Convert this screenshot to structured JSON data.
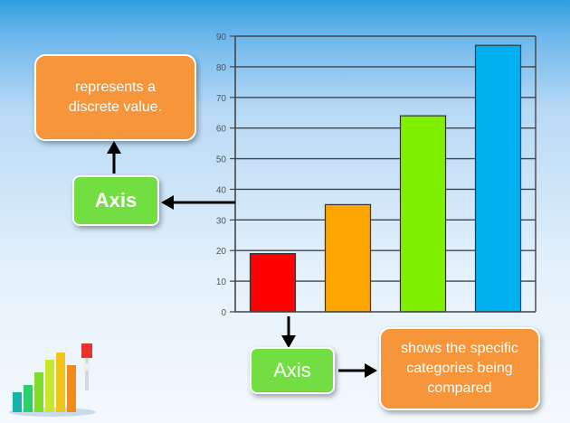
{
  "annotations": {
    "value_axis_note": "represents a discrete value.",
    "value_axis_label": "Axis",
    "category_axis_label": "Axis",
    "category_axis_note": "shows the specific categories being compared"
  },
  "colors": {
    "arrow": "#000000",
    "note_box": "#f7953b",
    "label_box": "#72de42"
  },
  "chart_data": {
    "type": "bar",
    "categories": [
      "",
      "",
      "",
      ""
    ],
    "values": [
      19,
      35,
      64,
      87
    ],
    "colors": [
      "#ff0000",
      "#ffa500",
      "#7ff000",
      "#00b0f0"
    ],
    "ylim": [
      0,
      90
    ],
    "yticks": [
      0,
      10,
      20,
      30,
      40,
      50,
      60,
      70,
      80,
      90
    ],
    "grid": true,
    "legend": "none"
  },
  "decor_icon": "bar-chart-clipart-icon"
}
